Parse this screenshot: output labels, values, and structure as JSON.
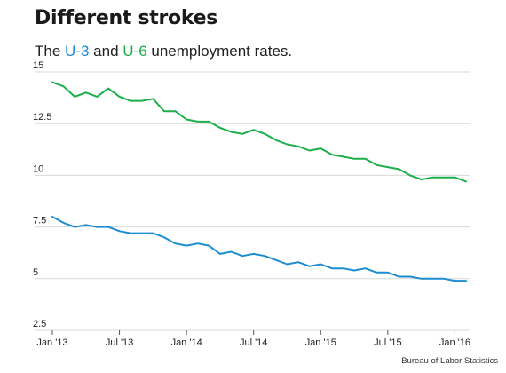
{
  "title": "Different strokes",
  "subtitle": {
    "prefix": "The ",
    "u3": "U-3",
    "middle": " and ",
    "u6": "U-6",
    "suffix": " unemployment rates."
  },
  "source": "Bureau of Labor Statistics",
  "colors": {
    "u3": "#1d8dd1",
    "u6": "#1cae4a",
    "grid": "#d9d9d9"
  },
  "chart_data": {
    "type": "line",
    "x": [
      "2013-01",
      "2013-02",
      "2013-03",
      "2013-04",
      "2013-05",
      "2013-06",
      "2013-07",
      "2013-08",
      "2013-09",
      "2013-10",
      "2013-11",
      "2013-12",
      "2014-01",
      "2014-02",
      "2014-03",
      "2014-04",
      "2014-05",
      "2014-06",
      "2014-07",
      "2014-08",
      "2014-09",
      "2014-10",
      "2014-11",
      "2014-12",
      "2015-01",
      "2015-02",
      "2015-03",
      "2015-04",
      "2015-05",
      "2015-06",
      "2015-07",
      "2015-08",
      "2015-09",
      "2015-10",
      "2015-11",
      "2015-12",
      "2016-01",
      "2016-02"
    ],
    "x_tick_labels": [
      "Jan '13",
      "Jul '13",
      "Jan '14",
      "Jul '14",
      "Jan '15",
      "Jul '15",
      "Jan '16"
    ],
    "x_tick_values": [
      "2013-01",
      "2013-07",
      "2014-01",
      "2014-07",
      "2015-01",
      "2015-07",
      "2016-01"
    ],
    "y_tick_labels": [
      "15",
      "12.5",
      "10",
      "7.5",
      "5",
      "2.5"
    ],
    "y_tick_values": [
      15,
      12.5,
      10,
      7.5,
      5,
      2.5
    ],
    "ylim": [
      2.5,
      15
    ],
    "grid": true,
    "series": [
      {
        "name": "U-6",
        "color_key": "u6",
        "values": [
          14.5,
          14.3,
          13.8,
          14.0,
          13.8,
          14.2,
          13.8,
          13.6,
          13.6,
          13.7,
          13.1,
          13.1,
          12.7,
          12.6,
          12.6,
          12.3,
          12.1,
          12.0,
          12.2,
          12.0,
          11.7,
          11.5,
          11.4,
          11.2,
          11.3,
          11.0,
          10.9,
          10.8,
          10.8,
          10.5,
          10.4,
          10.3,
          10.0,
          9.8,
          9.9,
          9.9,
          9.9,
          9.7
        ]
      },
      {
        "name": "U-3",
        "color_key": "u3",
        "values": [
          8.0,
          7.7,
          7.5,
          7.6,
          7.5,
          7.5,
          7.3,
          7.2,
          7.2,
          7.2,
          7.0,
          6.7,
          6.6,
          6.7,
          6.6,
          6.2,
          6.3,
          6.1,
          6.2,
          6.1,
          5.9,
          5.7,
          5.8,
          5.6,
          5.7,
          5.5,
          5.5,
          5.4,
          5.5,
          5.3,
          5.3,
          5.1,
          5.1,
          5.0,
          5.0,
          5.0,
          4.9,
          4.9
        ]
      }
    ]
  }
}
